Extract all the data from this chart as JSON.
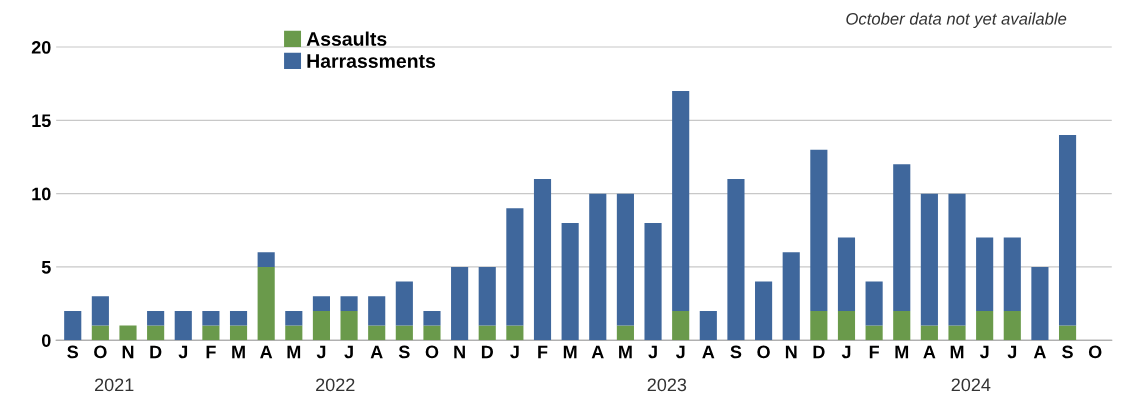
{
  "chart_data": {
    "type": "bar",
    "stacked": true,
    "categories": [
      "S",
      "O",
      "N",
      "D",
      "J",
      "F",
      "M",
      "A",
      "M",
      "J",
      "J",
      "A",
      "S",
      "O",
      "N",
      "D",
      "J",
      "F",
      "M",
      "A",
      "M",
      "J",
      "J",
      "A",
      "S",
      "O",
      "N",
      "D",
      "J",
      "F",
      "M",
      "A",
      "M",
      "J",
      "J",
      "A",
      "S",
      "O"
    ],
    "series": [
      {
        "name": "Assaults",
        "color": "#6a9a4b",
        "values": [
          0,
          1,
          1,
          1,
          0,
          1,
          1,
          5,
          1,
          2,
          2,
          1,
          1,
          1,
          0,
          1,
          1,
          0,
          0,
          0,
          1,
          0,
          2,
          0,
          0,
          0,
          0,
          2,
          2,
          1,
          2,
          1,
          1,
          2,
          2,
          0,
          1,
          null
        ]
      },
      {
        "name": "Harrassments",
        "color": "#3f679c",
        "values": [
          2,
          2,
          0,
          1,
          2,
          1,
          1,
          1,
          1,
          1,
          1,
          2,
          3,
          1,
          5,
          4,
          8,
          11,
          8,
          10,
          9,
          8,
          15,
          2,
          11,
          4,
          6,
          11,
          5,
          3,
          10,
          9,
          9,
          5,
          5,
          5,
          13,
          null
        ]
      }
    ],
    "ylim": [
      0,
      21
    ],
    "yticks": [
      0,
      5,
      10,
      15,
      20
    ],
    "grid": "y",
    "legend": "top left",
    "annotations": [
      "October data not yet available",
      "2021",
      "2022",
      "2023",
      "2024"
    ]
  }
}
